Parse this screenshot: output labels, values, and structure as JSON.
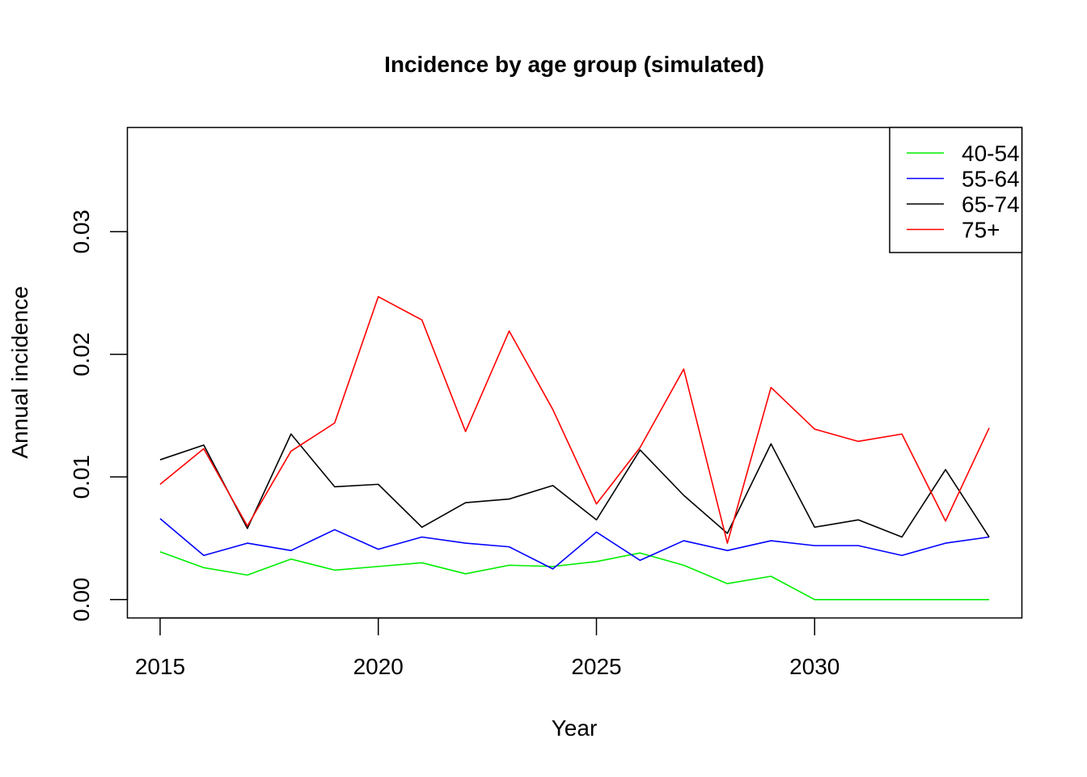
{
  "chart_data": {
    "type": "line",
    "title": "Incidence by age group (simulated)",
    "xlabel": "Year",
    "ylabel": "Annual incidence",
    "xlim": [
      2014.25,
      2034.75
    ],
    "ylim": [
      -0.0015,
      0.0385
    ],
    "x_ticks": [
      2015,
      2020,
      2025,
      2030
    ],
    "x_tick_labels": [
      "2015",
      "2020",
      "2025",
      "2030"
    ],
    "y_ticks": [
      0,
      0.01,
      0.02,
      0.03
    ],
    "y_tick_labels": [
      "0.00",
      "0.01",
      "0.02",
      "0.03"
    ],
    "grid": false,
    "legend_position": "top-right",
    "x": [
      2015,
      2016,
      2017,
      2018,
      2019,
      2020,
      2021,
      2022,
      2023,
      2024,
      2025,
      2026,
      2027,
      2028,
      2029,
      2030,
      2031,
      2032,
      2033,
      2034
    ],
    "series": [
      {
        "name": "40-54",
        "color": "#00ee00",
        "values": [
          0.0039,
          0.0026,
          0.002,
          0.0033,
          0.0024,
          0.0027,
          0.003,
          0.0021,
          0.0028,
          0.0027,
          0.0031,
          0.0038,
          0.0028,
          0.0013,
          0.0019,
          0.0,
          0.0,
          0.0,
          0.0,
          0.0
        ]
      },
      {
        "name": "55-64",
        "color": "#0000ff",
        "values": [
          0.0066,
          0.0036,
          0.0046,
          0.004,
          0.0057,
          0.0041,
          0.0051,
          0.0046,
          0.0043,
          0.0025,
          0.0055,
          0.0032,
          0.0048,
          0.004,
          0.0048,
          0.0044,
          0.0044,
          0.0036,
          0.0046,
          0.0051
        ]
      },
      {
        "name": "65-74",
        "color": "#000000",
        "values": [
          0.0114,
          0.0126,
          0.0058,
          0.0135,
          0.0092,
          0.0094,
          0.0059,
          0.0079,
          0.0082,
          0.0093,
          0.0065,
          0.0122,
          0.0085,
          0.0054,
          0.0127,
          0.0059,
          0.0065,
          0.0051,
          0.0106,
          0.0051
        ]
      },
      {
        "name": "75+",
        "color": "#ff0000",
        "values": [
          0.0094,
          0.0123,
          0.006,
          0.0121,
          0.0144,
          0.0247,
          0.0228,
          0.0137,
          0.0219,
          0.0155,
          0.0078,
          0.0124,
          0.0188,
          0.0046,
          0.0173,
          0.0139,
          0.0129,
          0.0135,
          0.0064,
          0.014
        ]
      }
    ]
  }
}
